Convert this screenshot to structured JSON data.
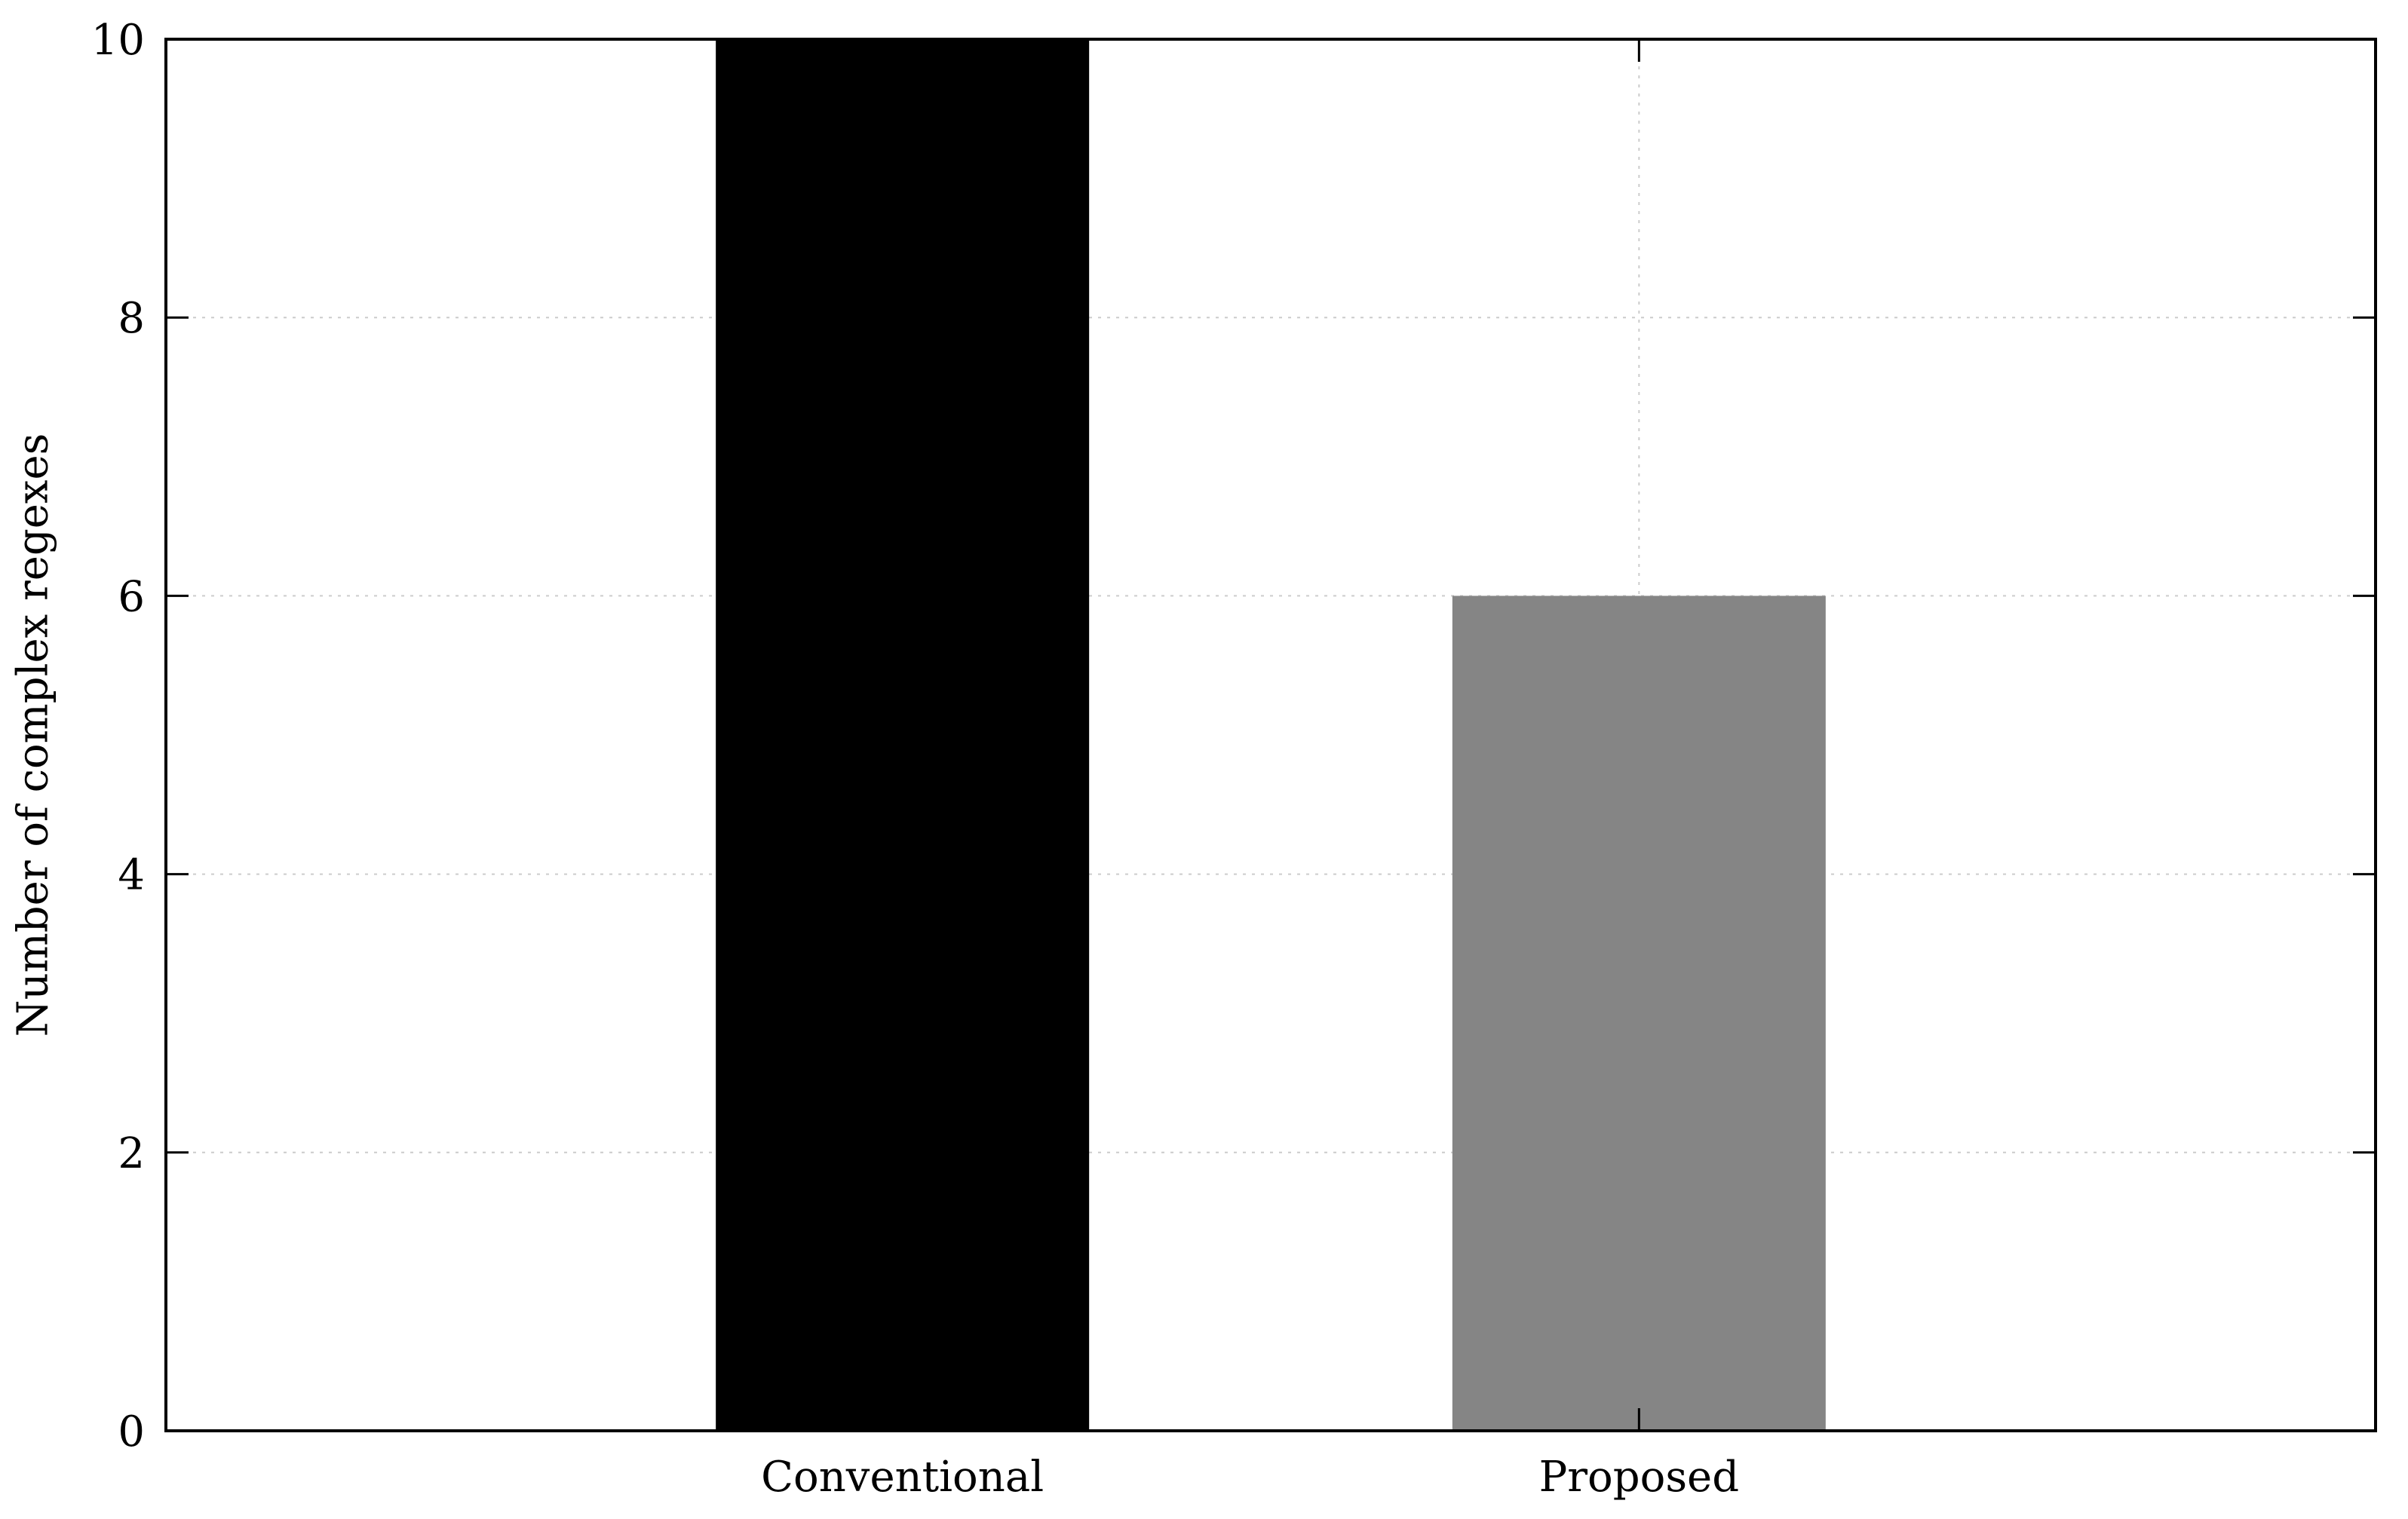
{
  "chart_data": {
    "type": "bar",
    "categories": [
      "Conventional",
      "Proposed"
    ],
    "values": [
      10,
      6
    ],
    "bar_colors": [
      "#000000",
      "#858585"
    ],
    "title": "",
    "xlabel": "",
    "ylabel": "Number of complex regexes",
    "ylim": [
      0,
      10
    ],
    "yticks": [
      0,
      2,
      4,
      6,
      8,
      10
    ],
    "ytick_labels": [
      "0",
      "2",
      "4",
      "6",
      "8",
      "10"
    ],
    "grid": true,
    "grid_color": "#cccccc",
    "legend": "none"
  }
}
